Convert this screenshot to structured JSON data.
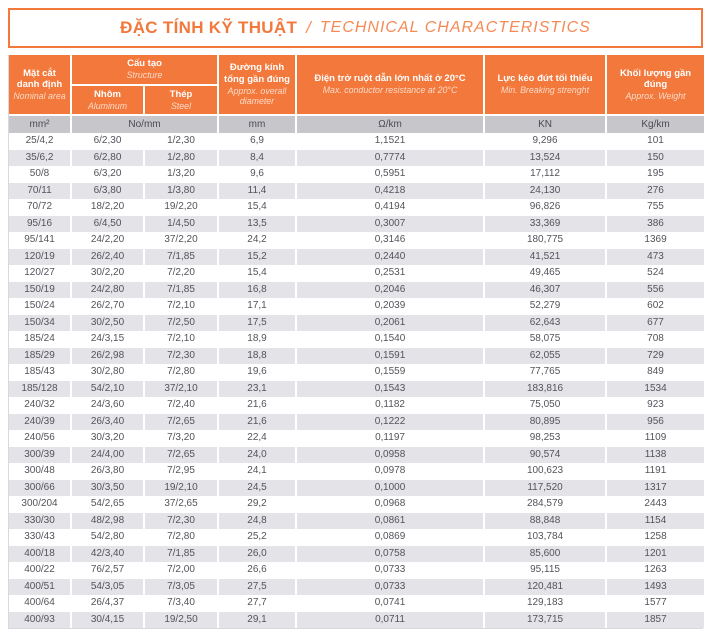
{
  "title": {
    "vi": "ĐẶC TÍNH KỸ THUẬT",
    "sep": "/",
    "en": "TECHNICAL CHARACTERISTICS"
  },
  "colors": {
    "accent": "#f2783c",
    "accent_light": "#f58a55",
    "unit_row_bg": "#c7c6cb",
    "alt_row_bg": "#e4e3e8",
    "text_color": "#54535b"
  },
  "table": {
    "column_keys": [
      "nominal-area",
      "aluminum",
      "steel",
      "diameter",
      "resistance",
      "breaking-force",
      "weight"
    ],
    "headers": {
      "nominal": {
        "vi": "Mặt cắt danh định",
        "en": "Nominal area"
      },
      "structure": {
        "vi": "Cấu tạo",
        "en": "Structure"
      },
      "aluminum": {
        "vi": "Nhôm",
        "en": "Aluminum"
      },
      "steel": {
        "vi": "Thép",
        "en": "Steel"
      },
      "diameter": {
        "vi": "Đường kính tổng gần đúng",
        "en": "Approx. overall diameter"
      },
      "resistance": {
        "vi": "Điện trở ruột dẫn lớn nhất ở 20°C",
        "en": "Max. conductor resistance at 20°C"
      },
      "breaking": {
        "vi": "Lực kéo đứt tối thiểu",
        "en": "Min. Breaking strenght"
      },
      "weight": {
        "vi": "Khối lượng gần đúng",
        "en": "Approx. Weight"
      }
    },
    "units": {
      "nominal": "mm²",
      "structure": "No/mm",
      "diameter": "mm",
      "resistance": "Ω/km",
      "breaking": "KN",
      "weight": "Kg/km"
    },
    "rows": [
      [
        "25/4,2",
        "6/2,30",
        "1/2,30",
        "6,9",
        "1,1521",
        "9,296",
        "101"
      ],
      [
        "35/6,2",
        "6/2,80",
        "1/2,80",
        "8,4",
        "0,7774",
        "13,524",
        "150"
      ],
      [
        "50/8",
        "6/3,20",
        "1/3,20",
        "9,6",
        "0,5951",
        "17,112",
        "195"
      ],
      [
        "70/11",
        "6/3,80",
        "1/3,80",
        "11,4",
        "0,4218",
        "24,130",
        "276"
      ],
      [
        "70/72",
        "18/2,20",
        "19/2,20",
        "15,4",
        "0,4194",
        "96,826",
        "755"
      ],
      [
        "95/16",
        "6/4,50",
        "1/4,50",
        "13,5",
        "0,3007",
        "33,369",
        "386"
      ],
      [
        "95/141",
        "24/2,20",
        "37/2,20",
        "24,2",
        "0,3146",
        "180,775",
        "1369"
      ],
      [
        "120/19",
        "26/2,40",
        "7/1,85",
        "15,2",
        "0,2440",
        "41,521",
        "473"
      ],
      [
        "120/27",
        "30/2,20",
        "7/2,20",
        "15,4",
        "0,2531",
        "49,465",
        "524"
      ],
      [
        "150/19",
        "24/2,80",
        "7/1,85",
        "16,8",
        "0,2046",
        "46,307",
        "556"
      ],
      [
        "150/24",
        "26/2,70",
        "7/2,10",
        "17,1",
        "0,2039",
        "52,279",
        "602"
      ],
      [
        "150/34",
        "30/2,50",
        "7/2,50",
        "17,5",
        "0,2061",
        "62,643",
        "677"
      ],
      [
        "185/24",
        "24/3,15",
        "7/2,10",
        "18,9",
        "0,1540",
        "58,075",
        "708"
      ],
      [
        "185/29",
        "26/2,98",
        "7/2,30",
        "18,8",
        "0,1591",
        "62,055",
        "729"
      ],
      [
        "185/43",
        "30/2,80",
        "7/2,80",
        "19,6",
        "0,1559",
        "77,765",
        "849"
      ],
      [
        "185/128",
        "54/2,10",
        "37/2,10",
        "23,1",
        "0,1543",
        "183,816",
        "1534"
      ],
      [
        "240/32",
        "24/3,60",
        "7/2,40",
        "21,6",
        "0,1182",
        "75,050",
        "923"
      ],
      [
        "240/39",
        "26/3,40",
        "7/2,65",
        "21,6",
        "0,1222",
        "80,895",
        "956"
      ],
      [
        "240/56",
        "30/3,20",
        "7/3,20",
        "22,4",
        "0,1197",
        "98,253",
        "1109"
      ],
      [
        "300/39",
        "24/4,00",
        "7/2,65",
        "24,0",
        "0,0958",
        "90,574",
        "1138"
      ],
      [
        "300/48",
        "26/3,80",
        "7/2,95",
        "24,1",
        "0,0978",
        "100,623",
        "1191"
      ],
      [
        "300/66",
        "30/3,50",
        "19/2,10",
        "24,5",
        "0,1000",
        "117,520",
        "1317"
      ],
      [
        "300/204",
        "54/2,65",
        "37/2,65",
        "29,2",
        "0,0968",
        "284,579",
        "2443"
      ],
      [
        "330/30",
        "48/2,98",
        "7/2,30",
        "24,8",
        "0,0861",
        "88,848",
        "1154"
      ],
      [
        "330/43",
        "54/2,80",
        "7/2,80",
        "25,2",
        "0,0869",
        "103,784",
        "1258"
      ],
      [
        "400/18",
        "42/3,40",
        "7/1,85",
        "26,0",
        "0,0758",
        "85,600",
        "1201"
      ],
      [
        "400/22",
        "76/2,57",
        "7/2,00",
        "26,6",
        "0,0733",
        "95,115",
        "1263"
      ],
      [
        "400/51",
        "54/3,05",
        "7/3,05",
        "27,5",
        "0,0733",
        "120,481",
        "1493"
      ],
      [
        "400/64",
        "26/4,37",
        "7/3,40",
        "27,7",
        "0,0741",
        "129,183",
        "1577"
      ],
      [
        "400/93",
        "30/4,15",
        "19/2,50",
        "29,1",
        "0,0711",
        "173,715",
        "1857"
      ]
    ]
  }
}
